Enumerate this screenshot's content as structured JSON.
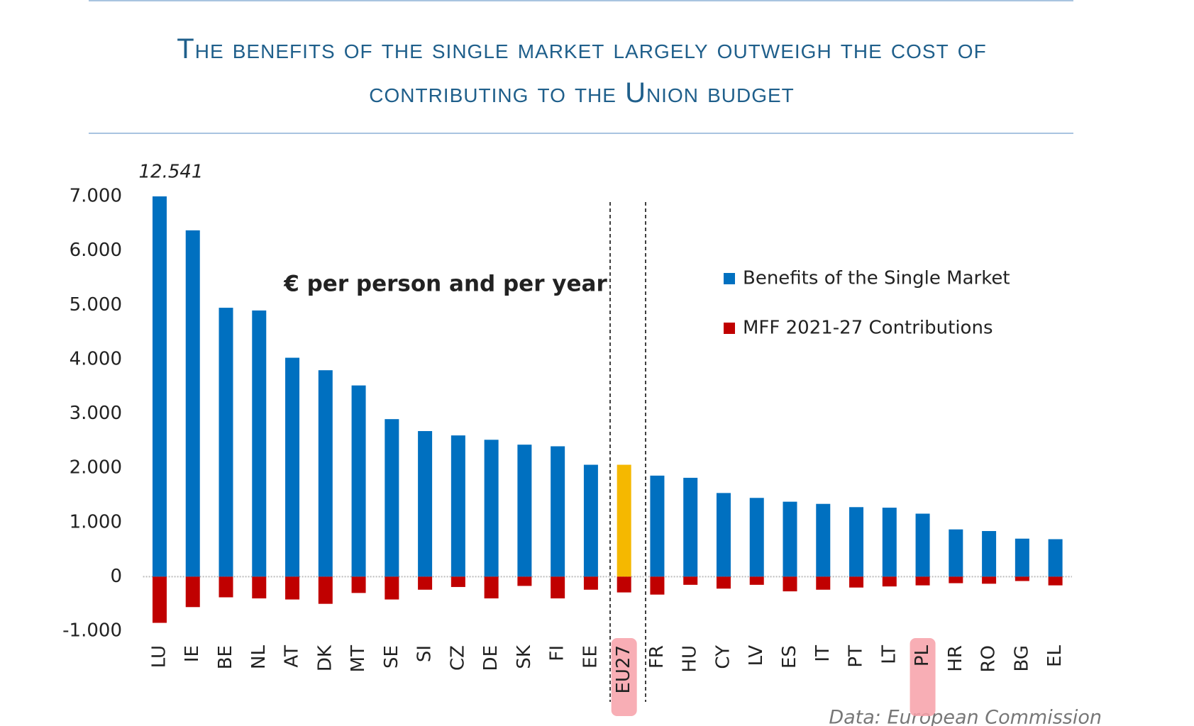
{
  "chart_data": {
    "type": "bar",
    "title": "The benefits of the single market largely outweigh the cost of contributing to the Union budget",
    "annotation": "€ per person and per year",
    "source": "Data: European Commission",
    "categories": [
      "LU",
      "IE",
      "BE",
      "NL",
      "AT",
      "DK",
      "MT",
      "SE",
      "SI",
      "CZ",
      "DE",
      "SK",
      "FI",
      "EE",
      "EU27",
      "FR",
      "HU",
      "CY",
      "LV",
      "ES",
      "IT",
      "PT",
      "LT",
      "PL",
      "HR",
      "RO",
      "BG",
      "EL"
    ],
    "series": [
      {
        "name": "Benefits of the Single Market",
        "color": "#0070c0",
        "values": [
          12541,
          6375,
          4950,
          4900,
          4030,
          3800,
          3520,
          2900,
          2680,
          2600,
          2520,
          2430,
          2400,
          2060,
          2060,
          1860,
          1820,
          1540,
          1450,
          1380,
          1340,
          1280,
          1270,
          1160,
          870,
          840,
          700,
          690
        ],
        "value_labels": [
          "12.541",
          null,
          null,
          null,
          null,
          null,
          null,
          null,
          null,
          null,
          null,
          null,
          null,
          null,
          null,
          null,
          null,
          null,
          null,
          null,
          null,
          null,
          null,
          null,
          null,
          null,
          null,
          null
        ],
        "highlight": {
          "index": 14,
          "color": "#f5b800"
        }
      },
      {
        "name": "MFF 2021-27 Contributions",
        "color": "#c00000",
        "values": [
          -850,
          -560,
          -380,
          -400,
          -420,
          -500,
          -300,
          -420,
          -240,
          -190,
          -400,
          -170,
          -400,
          -240,
          -290,
          -330,
          -150,
          -220,
          -150,
          -270,
          -240,
          -200,
          -180,
          -160,
          -120,
          -130,
          -80,
          -160
        ]
      }
    ],
    "ylim": [
      -1000,
      7000
    ],
    "yticks": [
      {
        "value": -1000,
        "label": "-1.000"
      },
      0,
      {
        "value": 1000,
        "label": "1.000"
      },
      {
        "value": 2000,
        "label": "2.000"
      },
      {
        "value": 3000,
        "label": "3.000"
      },
      {
        "value": 4000,
        "label": "4.000"
      },
      {
        "value": 5000,
        "label": "5.000"
      },
      {
        "value": 6000,
        "label": "6.000"
      },
      {
        "value": 7000,
        "label": "7.000"
      }
    ],
    "label_highlights": [
      14,
      23
    ],
    "label_highlight_color": "#f7a0a8"
  }
}
